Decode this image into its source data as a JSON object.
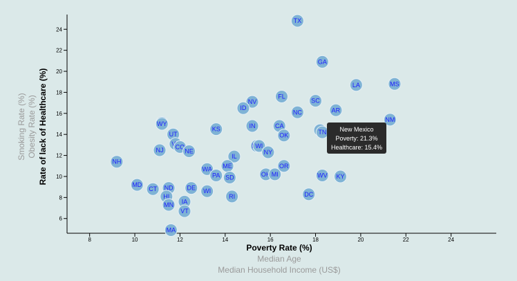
{
  "chart_data": {
    "type": "scatter",
    "xlabel": "Poverty Rate (%)",
    "ylabel": "Rate of lack of Healthcare (%)",
    "x_inactive_labels": [
      "Median Age",
      "Median Household Income (US$)"
    ],
    "y_inactive_labels": [
      "Obesity Rate (%)",
      "Smoking Rate (%)"
    ],
    "xlim": [
      7,
      26
    ],
    "ylim": [
      4.6,
      25.4
    ],
    "x_ticks": [
      8,
      10,
      12,
      14,
      16,
      18,
      20,
      22,
      24
    ],
    "y_ticks": [
      6,
      8,
      10,
      12,
      14,
      16,
      18,
      20,
      22,
      24
    ],
    "points": [
      {
        "abbr": "TX",
        "x": 17.2,
        "y": 24.8
      },
      {
        "abbr": "GA",
        "x": 18.3,
        "y": 20.9
      },
      {
        "abbr": "LA",
        "x": 19.8,
        "y": 18.7
      },
      {
        "abbr": "MS",
        "x": 21.5,
        "y": 18.8
      },
      {
        "abbr": "FL",
        "x": 16.5,
        "y": 17.6
      },
      {
        "abbr": "SC",
        "x": 18.0,
        "y": 17.2
      },
      {
        "abbr": "NV",
        "x": 15.2,
        "y": 17.1
      },
      {
        "abbr": "ID",
        "x": 14.8,
        "y": 16.5
      },
      {
        "abbr": "NC",
        "x": 17.2,
        "y": 16.1
      },
      {
        "abbr": "AR",
        "x": 18.9,
        "y": 16.3
      },
      {
        "abbr": "NM",
        "x": 21.3,
        "y": 15.4
      },
      {
        "abbr": "AK",
        "x": 11.2,
        "y": 15.1
      },
      {
        "abbr": "WY",
        "x": 11.2,
        "y": 15.0
      },
      {
        "abbr": "IN",
        "x": 15.2,
        "y": 14.8
      },
      {
        "abbr": "CA",
        "x": 16.4,
        "y": 14.8
      },
      {
        "abbr": "KS",
        "x": 13.6,
        "y": 14.5
      },
      {
        "abbr": "AZ",
        "x": 18.2,
        "y": 14.4
      },
      {
        "abbr": "TN",
        "x": 18.3,
        "y": 14.2
      },
      {
        "abbr": "UT",
        "x": 11.7,
        "y": 14.0
      },
      {
        "abbr": "OK",
        "x": 16.6,
        "y": 13.9
      },
      {
        "abbr": "VA",
        "x": 11.8,
        "y": 13.1
      },
      {
        "abbr": "CO",
        "x": 12.0,
        "y": 12.8
      },
      {
        "abbr": "MO",
        "x": 15.4,
        "y": 12.9
      },
      {
        "abbr": "WI",
        "x": 15.5,
        "y": 12.9
      },
      {
        "abbr": "NJ",
        "x": 11.1,
        "y": 12.5
      },
      {
        "abbr": "NE",
        "x": 12.4,
        "y": 12.4
      },
      {
        "abbr": "NY",
        "x": 15.9,
        "y": 12.3
      },
      {
        "abbr": "IL",
        "x": 14.4,
        "y": 11.9
      },
      {
        "abbr": "NH",
        "x": 9.2,
        "y": 11.4
      },
      {
        "abbr": "ME",
        "x": 14.1,
        "y": 11.0
      },
      {
        "abbr": "OR",
        "x": 16.6,
        "y": 11.0
      },
      {
        "abbr": "WA",
        "x": 13.2,
        "y": 10.7
      },
      {
        "abbr": "PA",
        "x": 13.6,
        "y": 10.1
      },
      {
        "abbr": "SD",
        "x": 14.2,
        "y": 9.9
      },
      {
        "abbr": "OH",
        "x": 15.8,
        "y": 10.2
      },
      {
        "abbr": "MI",
        "x": 16.2,
        "y": 10.2
      },
      {
        "abbr": "WV",
        "x": 18.3,
        "y": 10.1
      },
      {
        "abbr": "KY",
        "x": 19.1,
        "y": 10.0
      },
      {
        "abbr": "MD",
        "x": 10.1,
        "y": 9.2
      },
      {
        "abbr": "CT",
        "x": 10.8,
        "y": 8.8
      },
      {
        "abbr": "ND",
        "x": 11.5,
        "y": 8.9
      },
      {
        "abbr": "DE",
        "x": 12.5,
        "y": 8.9
      },
      {
        "abbr": "HI",
        "x": 11.4,
        "y": 8.1
      },
      {
        "abbr": "WI",
        "x": 13.2,
        "y": 8.6
      },
      {
        "abbr": "DC",
        "x": 17.7,
        "y": 8.3
      },
      {
        "abbr": "IA",
        "x": 12.2,
        "y": 7.6
      },
      {
        "abbr": "RI",
        "x": 14.3,
        "y": 8.1
      },
      {
        "abbr": "MN",
        "x": 11.5,
        "y": 7.3
      },
      {
        "abbr": "VT",
        "x": 12.2,
        "y": 6.7
      },
      {
        "abbr": "MA",
        "x": 11.6,
        "y": 4.9
      }
    ],
    "tooltip": {
      "state": "New Mexico",
      "poverty": "Poverty: 21.3%",
      "healthcare": "Healthcare: 15.4%"
    }
  }
}
